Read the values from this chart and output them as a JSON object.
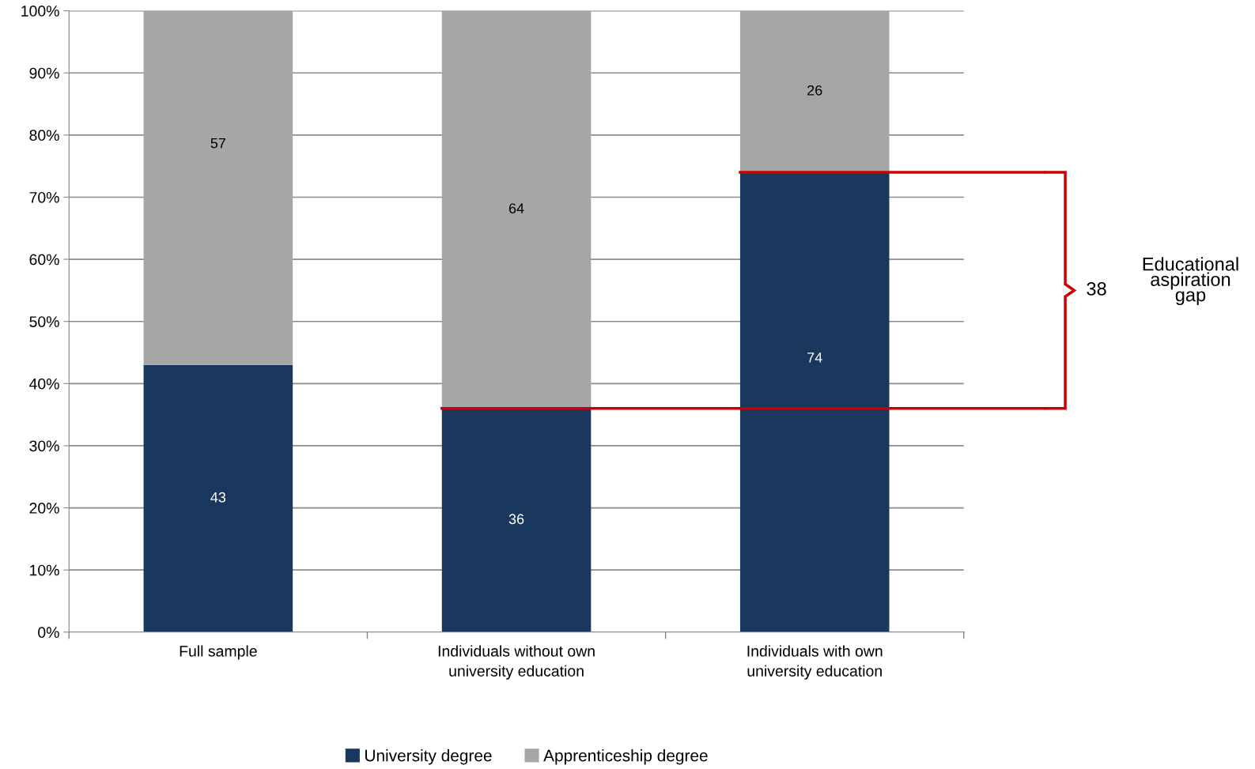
{
  "chart_data": {
    "type": "bar",
    "stacked": true,
    "categories": [
      "Full sample",
      "Individuals without own\nuniversity education",
      "Individuals with own\nuniversity education"
    ],
    "series": [
      {
        "name": "University degree",
        "color": "#1a375e",
        "values": [
          43,
          36,
          74
        ]
      },
      {
        "name": "Apprenticeship degree",
        "color": "#a6a6a6",
        "values": [
          57,
          64,
          26
        ]
      }
    ],
    "ylim": [
      0,
      100
    ],
    "yticks": [
      {
        "value": 0,
        "label": "0%"
      },
      {
        "value": 10,
        "label": "10%"
      },
      {
        "value": 20,
        "label": "20%"
      },
      {
        "value": 30,
        "label": "30%"
      },
      {
        "value": 40,
        "label": "40%"
      },
      {
        "value": 50,
        "label": "50%"
      },
      {
        "value": 60,
        "label": "60%"
      },
      {
        "value": 70,
        "label": "70%"
      },
      {
        "value": 80,
        "label": "80%"
      },
      {
        "value": 90,
        "label": "90%"
      },
      {
        "value": 100,
        "label": "100%"
      }
    ],
    "grid": "y",
    "legend": "bottom",
    "data_labels": true,
    "ref_lines": [
      {
        "axis": "y",
        "value": 74,
        "color": "#cc0000"
      },
      {
        "axis": "y",
        "value": 36,
        "color": "#cc0000"
      }
    ],
    "annotations": [
      "38",
      "Educational\naspiration\ngap"
    ]
  }
}
